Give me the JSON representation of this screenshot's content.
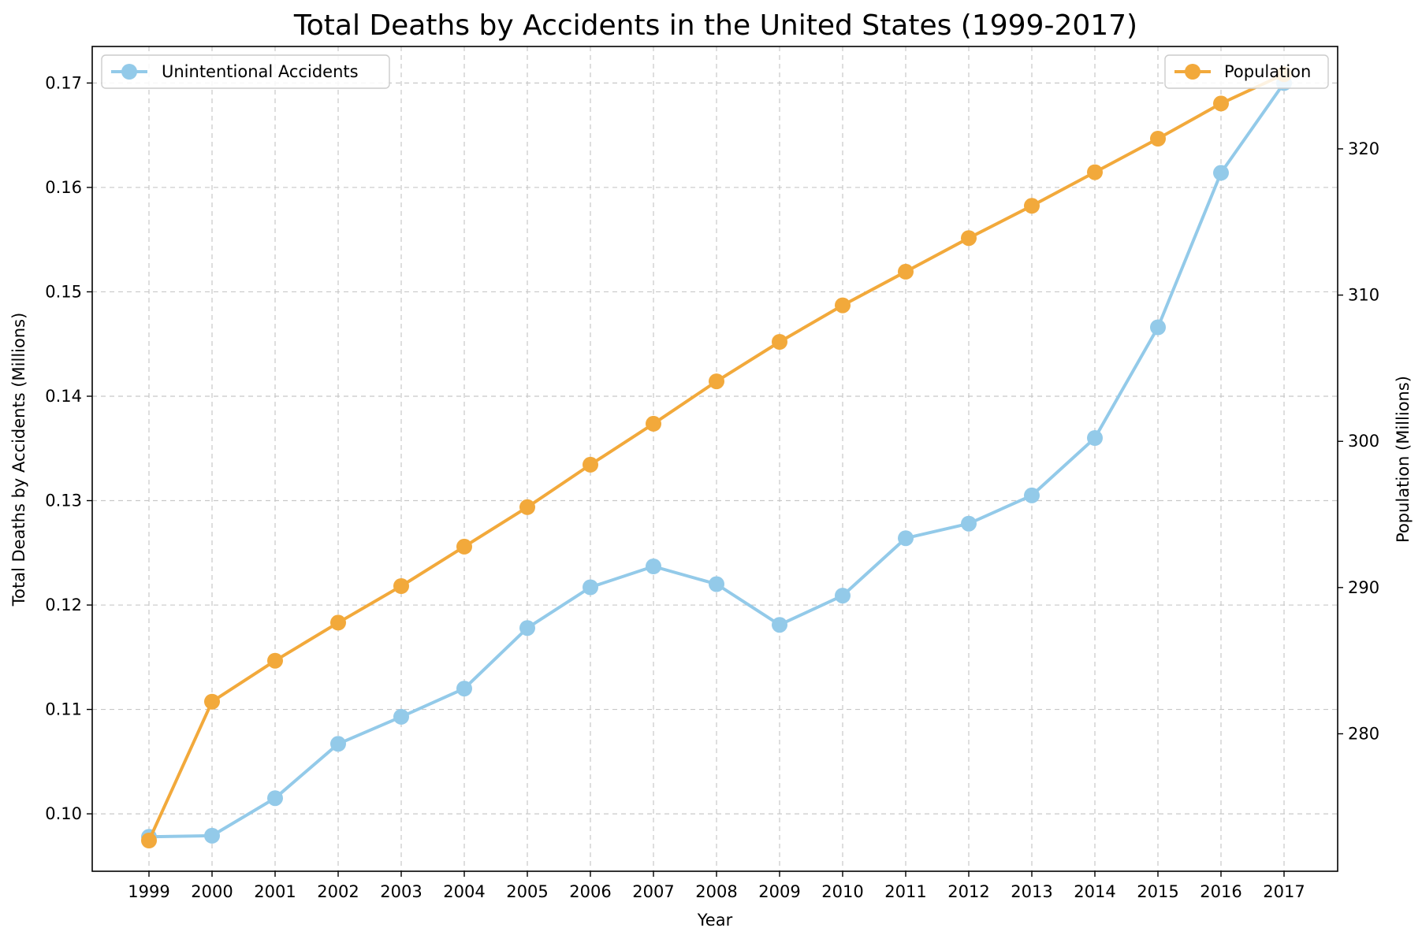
{
  "chart_data": {
    "type": "line",
    "title": "Total Deaths by Accidents in the United States (1999-2017)",
    "xlabel": "Year",
    "ylabel_left": "Total Deaths by Accidents (Millions)",
    "ylabel_right": "Population (Millions)",
    "grid": true,
    "x": [
      1999,
      2000,
      2001,
      2002,
      2003,
      2004,
      2005,
      2006,
      2007,
      2008,
      2009,
      2010,
      2011,
      2012,
      2013,
      2014,
      2015,
      2016,
      2017
    ],
    "ylim_left": [
      0.0945,
      0.1735
    ],
    "yticks_left": [
      "0.10",
      "0.11",
      "0.12",
      "0.13",
      "0.14",
      "0.15",
      "0.16",
      "0.17"
    ],
    "ylim_right": [
      270.6,
      327.0
    ],
    "yticks_right": [
      "280",
      "290",
      "300",
      "310",
      "320"
    ],
    "series": [
      {
        "name": "Unintentional Accidents",
        "axis": "left",
        "color": "#93cae9",
        "legend_position": "upper-left",
        "values": [
          0.0978,
          0.0979,
          0.1015,
          0.1067,
          0.1093,
          0.112,
          0.1178,
          0.1217,
          0.1237,
          0.122,
          0.1181,
          0.1209,
          0.1264,
          0.1278,
          0.1305,
          0.136,
          0.1466,
          0.1614,
          0.17
        ]
      },
      {
        "name": "Population",
        "axis": "right",
        "color": "#f2a93b",
        "legend_position": "upper-right",
        "values": [
          272.7,
          282.2,
          285.0,
          287.6,
          290.1,
          292.8,
          295.5,
          298.4,
          301.2,
          304.1,
          306.8,
          309.3,
          311.6,
          313.9,
          316.1,
          318.4,
          320.7,
          323.1,
          325.1
        ]
      }
    ]
  }
}
